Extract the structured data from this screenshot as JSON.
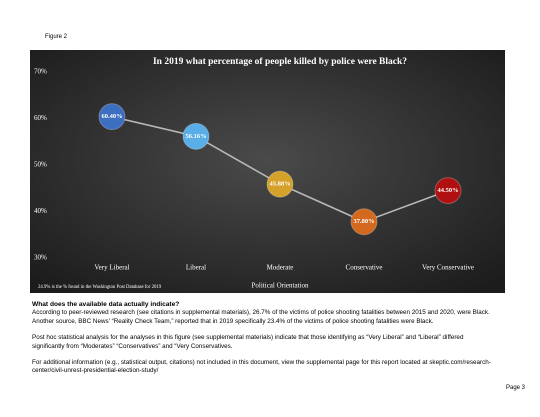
{
  "figure_label": "Figure 2",
  "chart_data": {
    "type": "line",
    "title": "In 2019 what percentage of people killed by police were Black?",
    "x_label": "Political Orientation",
    "footnote": "24.9% is the % found in the Washington Post Database for 2019",
    "categories": [
      "Very Liberal",
      "Liberal",
      "Moderate",
      "Conservative",
      "Very Conservative"
    ],
    "values": [
      60.4,
      56.16,
      45.88,
      37.8,
      44.5
    ],
    "value_labels": [
      "60.40%",
      "56.16%",
      "45.88%",
      "37.80%",
      "44.50%"
    ],
    "colors": [
      "#3e6ec0",
      "#5aaee8",
      "#d4a22a",
      "#d2691e",
      "#b01010"
    ],
    "line_color": "#b8b8b8",
    "ylim": [
      30,
      70
    ],
    "yticks": [
      {
        "value": 30,
        "label": "30%"
      },
      {
        "value": 40,
        "label": "40%"
      },
      {
        "value": 50,
        "label": "50%"
      },
      {
        "value": 60,
        "label": "60%"
      },
      {
        "value": 70,
        "label": "70%"
      }
    ],
    "grid": false
  },
  "body": {
    "heading": "What does the available data actually indicate?",
    "paragraphs": [
      "According to peer-reviewed research (see citations in supplemental materials), 26.7% of the victims of police shooting fatalities between 2015 and 2020, were Black. Another source, BBC News' “Reality Check Team,” reported that in 2019 specifically 23.4% of the victims of police shooting fatalities were Black.",
      "Post hoc statistical analysis for the analyses in this figure (see supplemental materials) indicate that those identifying as “Very Liberal” and “Liberal” differed significantly from “Moderates” “Conservatives” and “Very Conservatives.",
      "For additional information (e.g., statistical output, citations) not included in this document, view the supplemental page for this report located at skeptic.com/research-center/civil-unrest-presidential-election-study/"
    ]
  },
  "page_number": "Page 3"
}
